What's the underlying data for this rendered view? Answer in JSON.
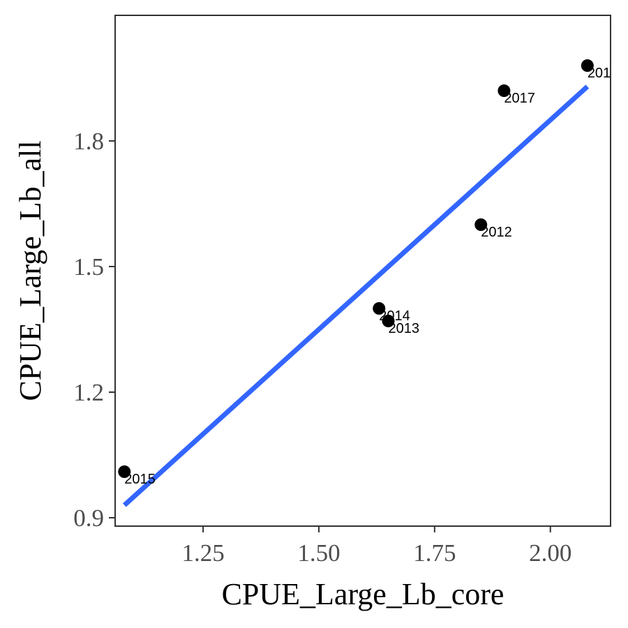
{
  "chart_data": {
    "type": "scatter",
    "title": "",
    "xlabel": "CPUE_Large_Lb_core",
    "ylabel": "CPUE_Large_Lb_all",
    "xlim": [
      1.06,
      2.13
    ],
    "ylim": [
      0.88,
      2.1
    ],
    "x_ticks": [
      1.25,
      1.5,
      1.75,
      2.0
    ],
    "x_tick_labels": [
      "1.25",
      "1.50",
      "1.75",
      "2.00"
    ],
    "y_ticks": [
      0.9,
      1.2,
      1.5,
      1.8
    ],
    "y_tick_labels": [
      "0.9",
      "1.2",
      "1.5",
      "1.8"
    ],
    "grid": false,
    "points": [
      {
        "label": "2015",
        "x": 1.08,
        "y": 1.01
      },
      {
        "label": "2014",
        "x": 1.63,
        "y": 1.4
      },
      {
        "label": "2013",
        "x": 1.65,
        "y": 1.37
      },
      {
        "label": "2012",
        "x": 1.85,
        "y": 1.6
      },
      {
        "label": "2017",
        "x": 1.9,
        "y": 1.92
      },
      {
        "label": "201",
        "x": 2.08,
        "y": 1.98
      }
    ],
    "fit_line": {
      "x": [
        1.08,
        2.08
      ],
      "y": [
        0.93,
        1.93
      ],
      "color": "#3366ff"
    },
    "point_color": "#000000",
    "panel_border_color": "#333333"
  }
}
